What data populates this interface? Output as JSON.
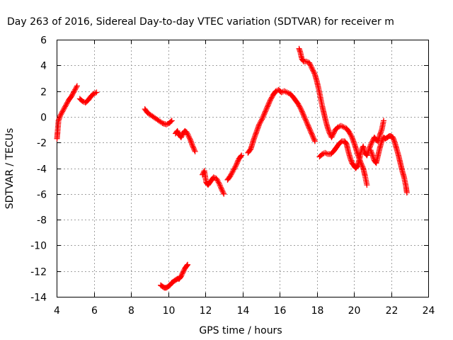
{
  "chart_data": {
    "type": "scatter",
    "title": "Day 263 of 2016, Sidereal Day-to-day VTEC variation (SDTVAR) for receiver m",
    "xlabel": "GPS time / hours",
    "ylabel": "SDTVAR / TECUs",
    "xlim": [
      4,
      24
    ],
    "ylim": [
      -14,
      6
    ],
    "xticks": [
      "4",
      "6",
      "8",
      "10",
      "12",
      "14",
      "16",
      "18",
      "20",
      "22",
      "24"
    ],
    "yticks": [
      "6",
      "4",
      "2",
      "0",
      "-2",
      "-4",
      "-6",
      "-8",
      "-10",
      "-12",
      "-14"
    ],
    "grid": true,
    "marker": "plus",
    "color": "#ff0000",
    "series": [
      {
        "segments": [
          [
            [
              4.02,
              -1.7
            ],
            [
              4.05,
              -1.2
            ],
            [
              4.1,
              -0.3
            ],
            [
              4.2,
              0.1
            ],
            [
              4.35,
              0.5
            ],
            [
              4.5,
              0.9
            ],
            [
              4.65,
              1.3
            ],
            [
              4.8,
              1.6
            ],
            [
              4.95,
              2.0
            ],
            [
              5.1,
              2.4
            ]
          ],
          [
            [
              5.25,
              1.4
            ],
            [
              5.4,
              1.2
            ],
            [
              5.55,
              1.1
            ],
            [
              5.7,
              1.3
            ],
            [
              5.85,
              1.6
            ],
            [
              6.0,
              1.8
            ],
            [
              6.15,
              1.9
            ]
          ],
          [
            [
              8.75,
              0.6
            ],
            [
              8.9,
              0.3
            ],
            [
              9.1,
              0.1
            ],
            [
              9.3,
              -0.1
            ],
            [
              9.5,
              -0.3
            ],
            [
              9.7,
              -0.5
            ],
            [
              9.9,
              -0.6
            ],
            [
              10.05,
              -0.5
            ],
            [
              10.2,
              -0.3
            ]
          ],
          [
            [
              10.4,
              -1.3
            ],
            [
              10.5,
              -1.1
            ],
            [
              10.6,
              -1.4
            ],
            [
              10.7,
              -1.6
            ],
            [
              10.8,
              -1.3
            ],
            [
              10.9,
              -1.1
            ],
            [
              11.0,
              -1.2
            ],
            [
              11.1,
              -1.5
            ],
            [
              11.2,
              -1.8
            ],
            [
              11.3,
              -2.2
            ],
            [
              11.45,
              -2.7
            ]
          ],
          [
            [
              11.85,
              -4.5
            ],
            [
              11.95,
              -4.2
            ],
            [
              12.05,
              -5.1
            ],
            [
              12.15,
              -5.3
            ],
            [
              12.3,
              -5.0
            ],
            [
              12.45,
              -4.7
            ],
            [
              12.6,
              -4.8
            ],
            [
              12.75,
              -5.2
            ],
            [
              12.9,
              -5.7
            ],
            [
              13.0,
              -6.0
            ]
          ],
          [
            [
              13.2,
              -4.9
            ],
            [
              13.35,
              -4.6
            ],
            [
              13.5,
              -4.2
            ],
            [
              13.65,
              -3.8
            ],
            [
              13.8,
              -3.3
            ],
            [
              13.95,
              -3.0
            ]
          ],
          [
            [
              14.3,
              -2.8
            ],
            [
              14.45,
              -2.5
            ],
            [
              14.6,
              -1.8
            ],
            [
              14.75,
              -1.2
            ],
            [
              14.9,
              -0.6
            ],
            [
              15.05,
              -0.2
            ],
            [
              15.2,
              0.3
            ],
            [
              15.35,
              0.8
            ],
            [
              15.5,
              1.3
            ],
            [
              15.65,
              1.7
            ],
            [
              15.8,
              2.0
            ],
            [
              15.95,
              2.1
            ],
            [
              16.1,
              1.9
            ],
            [
              16.25,
              2.0
            ],
            [
              16.4,
              1.9
            ],
            [
              16.55,
              1.8
            ],
            [
              16.7,
              1.6
            ],
            [
              16.85,
              1.3
            ],
            [
              17.0,
              1.0
            ],
            [
              17.15,
              0.6
            ],
            [
              17.3,
              0.1
            ],
            [
              17.45,
              -0.4
            ],
            [
              17.6,
              -0.9
            ],
            [
              17.75,
              -1.4
            ],
            [
              17.9,
              -1.9
            ]
          ],
          [
            [
              17.05,
              5.3
            ],
            [
              17.12,
              5.0
            ],
            [
              17.2,
              4.5
            ],
            [
              17.3,
              4.3
            ],
            [
              17.45,
              4.3
            ],
            [
              17.6,
              4.2
            ],
            [
              17.7,
              3.9
            ],
            [
              17.8,
              3.6
            ],
            [
              17.9,
              3.3
            ],
            [
              18.0,
              2.8
            ],
            [
              18.1,
              2.2
            ],
            [
              18.2,
              1.5
            ],
            [
              18.3,
              0.8
            ],
            [
              18.4,
              0.2
            ],
            [
              18.5,
              -0.4
            ],
            [
              18.6,
              -0.9
            ],
            [
              18.7,
              -1.3
            ],
            [
              18.8,
              -1.6
            ],
            [
              18.9,
              -1.3
            ],
            [
              19.0,
              -1.0
            ],
            [
              19.15,
              -0.8
            ],
            [
              19.3,
              -0.7
            ],
            [
              19.45,
              -0.8
            ],
            [
              19.6,
              -0.9
            ],
            [
              19.75,
              -1.2
            ],
            [
              19.9,
              -1.6
            ],
            [
              20.05,
              -2.2
            ],
            [
              20.2,
              -2.9
            ],
            [
              20.35,
              -3.5
            ],
            [
              20.5,
              -4.0
            ],
            [
              20.6,
              -4.6
            ],
            [
              20.7,
              -5.3
            ]
          ],
          [
            [
              18.15,
              -3.1
            ],
            [
              18.3,
              -2.9
            ],
            [
              18.45,
              -2.8
            ],
            [
              18.6,
              -2.9
            ],
            [
              18.75,
              -2.9
            ],
            [
              18.9,
              -2.7
            ],
            [
              19.05,
              -2.4
            ],
            [
              19.2,
              -2.1
            ],
            [
              19.35,
              -1.9
            ],
            [
              19.5,
              -1.9
            ],
            [
              19.6,
              -2.1
            ],
            [
              19.7,
              -2.7
            ],
            [
              19.8,
              -3.2
            ],
            [
              19.9,
              -3.6
            ],
            [
              20.0,
              -3.8
            ],
            [
              20.1,
              -4.0
            ],
            [
              20.2,
              -3.8
            ],
            [
              20.3,
              -3.3
            ],
            [
              20.4,
              -2.6
            ],
            [
              20.5,
              -2.3
            ],
            [
              20.6,
              -2.8
            ],
            [
              20.7,
              -3.0
            ],
            [
              20.8,
              -2.6
            ],
            [
              20.9,
              -2.2
            ],
            [
              21.0,
              -1.9
            ],
            [
              21.1,
              -1.6
            ],
            [
              21.2,
              -1.8
            ],
            [
              21.3,
              -1.9
            ],
            [
              21.4,
              -1.4
            ],
            [
              21.5,
              -1.0
            ],
            [
              21.6,
              -0.3
            ]
          ],
          [
            [
              20.9,
              -2.6
            ],
            [
              21.0,
              -3.0
            ],
            [
              21.1,
              -3.4
            ],
            [
              21.2,
              -3.6
            ],
            [
              21.3,
              -3.0
            ],
            [
              21.4,
              -2.4
            ],
            [
              21.5,
              -1.9
            ],
            [
              21.6,
              -1.6
            ],
            [
              21.7,
              -1.7
            ],
            [
              21.8,
              -1.6
            ],
            [
              21.9,
              -1.5
            ],
            [
              22.0,
              -1.5
            ],
            [
              22.1,
              -1.6
            ],
            [
              22.2,
              -2.0
            ],
            [
              22.3,
              -2.5
            ],
            [
              22.4,
              -3.0
            ],
            [
              22.5,
              -3.6
            ],
            [
              22.6,
              -4.2
            ],
            [
              22.7,
              -4.7
            ],
            [
              22.8,
              -5.4
            ],
            [
              22.85,
              -5.9
            ]
          ],
          [
            [
              9.6,
              -13.1
            ],
            [
              9.7,
              -13.2
            ],
            [
              9.8,
              -13.3
            ],
            [
              9.9,
              -13.3
            ],
            [
              10.0,
              -13.2
            ],
            [
              10.1,
              -13.1
            ],
            [
              10.2,
              -12.9
            ],
            [
              10.3,
              -12.8
            ],
            [
              10.4,
              -12.7
            ],
            [
              10.5,
              -12.6
            ],
            [
              10.6,
              -12.6
            ],
            [
              10.7,
              -12.4
            ],
            [
              10.8,
              -12.1
            ],
            [
              10.9,
              -11.8
            ],
            [
              11.0,
              -11.6
            ],
            [
              11.05,
              -11.5
            ]
          ]
        ]
      }
    ]
  }
}
